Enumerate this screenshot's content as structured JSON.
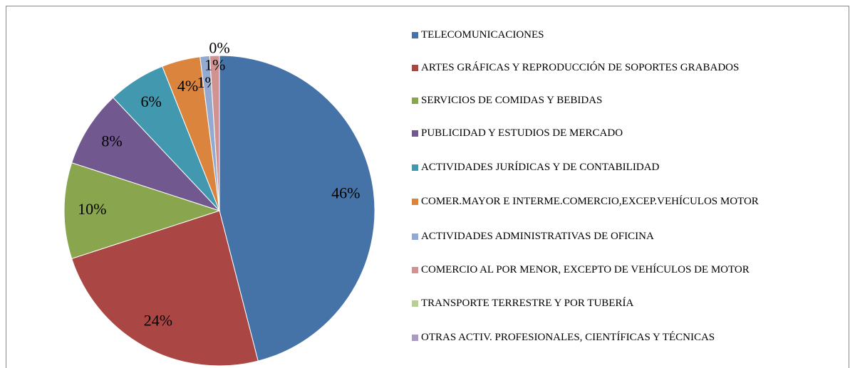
{
  "chart_data": {
    "type": "pie",
    "categories": [
      "TELECOMUNICACIONES",
      "ARTES GRÁFICAS Y REPRODUCCIÓN DE SOPORTES GRABADOS",
      "SERVICIOS DE COMIDAS Y BEBIDAS",
      "PUBLICIDAD Y ESTUDIOS DE MERCADO",
      "ACTIVIDADES JURÍDICAS Y DE CONTABILIDAD",
      "COMER.MAYOR E INTERME.COMERCIO,EXCEP.VEHÍCULOS MOTOR",
      "ACTIVIDADES ADMINISTRATIVAS DE OFICINA",
      "COMERCIO AL POR MENOR, EXCEPTO DE VEHÍCULOS DE MOTOR",
      "TRANSPORTE TERRESTRE Y POR TUBERÍA",
      "OTRAS ACTIV. PROFESIONALES, CIENTÍFICAS Y TÉCNICAS"
    ],
    "values": [
      46,
      24,
      10,
      8,
      6,
      4,
      1,
      1,
      0,
      0
    ],
    "value_labels": [
      "46%",
      "24%",
      "10%",
      "8%",
      "6%",
      "4%",
      "1%",
      "1%",
      "0%",
      null
    ],
    "colors": [
      "#4572a7",
      "#aa4643",
      "#89a54e",
      "#71588f",
      "#4198af",
      "#db843d",
      "#93a9cf",
      "#d19392",
      "#b9cd96",
      "#a99bbd"
    ],
    "legend": "right"
  }
}
